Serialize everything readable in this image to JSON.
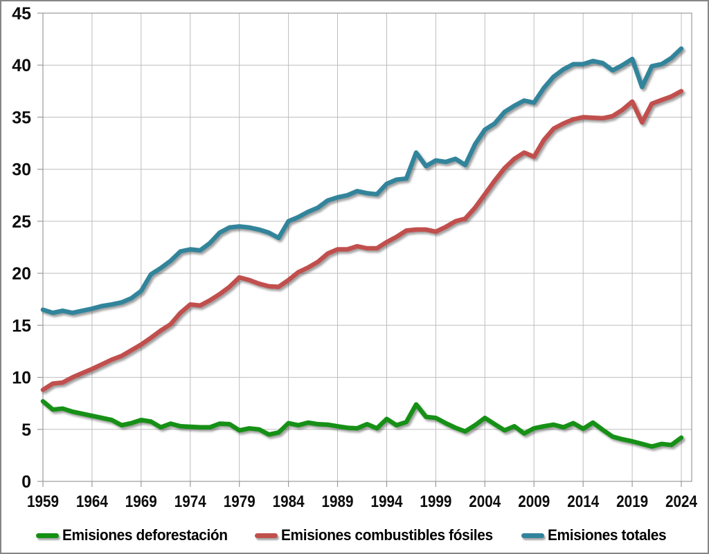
{
  "chart_data": {
    "type": "line",
    "title": "",
    "xlabel": "",
    "ylabel": "",
    "ylim": [
      0,
      45
    ],
    "grid": true,
    "legend_position": "bottom",
    "y_ticks": [
      0,
      5,
      10,
      15,
      20,
      25,
      30,
      35,
      40,
      45
    ],
    "y_tick_labels": [
      "0",
      "5",
      "10",
      "15",
      "20",
      "25",
      "30",
      "35",
      "40",
      "45"
    ],
    "x_ticks": [
      1959,
      1964,
      1969,
      1974,
      1979,
      1984,
      1989,
      1994,
      1999,
      2004,
      2009,
      2014,
      2019,
      2024
    ],
    "x_tick_labels": [
      "1959",
      "1964",
      "1969",
      "1974",
      "1979",
      "1984",
      "1989",
      "1994",
      "1999",
      "2004",
      "2009",
      "2014",
      "2019",
      "2024"
    ],
    "years": [
      1959,
      1960,
      1961,
      1962,
      1963,
      1964,
      1965,
      1966,
      1967,
      1968,
      1969,
      1970,
      1971,
      1972,
      1973,
      1974,
      1975,
      1976,
      1977,
      1978,
      1979,
      1980,
      1981,
      1982,
      1983,
      1984,
      1985,
      1986,
      1987,
      1988,
      1989,
      1990,
      1991,
      1992,
      1993,
      1994,
      1995,
      1996,
      1997,
      1998,
      1999,
      2000,
      2001,
      2002,
      2003,
      2004,
      2005,
      2006,
      2007,
      2008,
      2009,
      2010,
      2011,
      2012,
      2013,
      2014,
      2015,
      2016,
      2017,
      2018,
      2019,
      2020,
      2021,
      2022,
      2023,
      2024
    ],
    "series": [
      {
        "name": "Emisiones deforestación",
        "color": "#129012",
        "values": [
          7.7,
          6.9,
          7.0,
          6.7,
          6.5,
          6.3,
          6.1,
          5.9,
          5.4,
          5.6,
          5.9,
          5.75,
          5.2,
          5.55,
          5.3,
          5.25,
          5.2,
          5.2,
          5.55,
          5.5,
          4.9,
          5.1,
          5.0,
          4.5,
          4.7,
          5.6,
          5.4,
          5.65,
          5.5,
          5.45,
          5.3,
          5.15,
          5.1,
          5.5,
          5.1,
          6.0,
          5.4,
          5.7,
          7.4,
          6.2,
          6.1,
          5.6,
          5.15,
          4.8,
          5.4,
          6.1,
          5.5,
          4.9,
          5.3,
          4.6,
          5.1,
          5.3,
          5.45,
          5.2,
          5.6,
          5.05,
          5.65,
          4.95,
          4.3,
          4.05,
          3.85,
          3.6,
          3.35,
          3.6,
          3.5,
          4.2
        ]
      },
      {
        "name": "Emisiones combustibles fósiles",
        "color": "#C0504D",
        "values": [
          8.8,
          9.4,
          9.5,
          10.0,
          10.4,
          10.8,
          11.25,
          11.7,
          12.05,
          12.6,
          13.15,
          13.8,
          14.5,
          15.1,
          16.2,
          17.0,
          16.9,
          17.4,
          18.0,
          18.7,
          19.6,
          19.35,
          19.0,
          18.75,
          18.7,
          19.35,
          20.1,
          20.55,
          21.1,
          21.9,
          22.3,
          22.3,
          22.6,
          22.4,
          22.4,
          23.0,
          23.5,
          24.1,
          24.2,
          24.2,
          24.0,
          24.45,
          25.0,
          25.25,
          26.3,
          27.6,
          28.9,
          30.1,
          31.0,
          31.6,
          31.2,
          32.8,
          33.9,
          34.4,
          34.8,
          35.0,
          34.95,
          34.9,
          35.1,
          35.7,
          36.5,
          34.5,
          36.3,
          36.65,
          37.0,
          37.5
        ]
      },
      {
        "name": "Emisiones totales",
        "color": "#31849B",
        "values": [
          16.5,
          16.2,
          16.4,
          16.2,
          16.4,
          16.6,
          16.85,
          17.0,
          17.2,
          17.6,
          18.3,
          19.9,
          20.5,
          21.2,
          22.1,
          22.3,
          22.2,
          22.9,
          23.9,
          24.4,
          24.5,
          24.4,
          24.2,
          23.9,
          23.4,
          25.0,
          25.4,
          25.9,
          26.3,
          27.0,
          27.3,
          27.5,
          27.9,
          27.7,
          27.6,
          28.6,
          29.0,
          29.1,
          31.6,
          30.3,
          30.85,
          30.7,
          31.0,
          30.4,
          32.4,
          33.8,
          34.4,
          35.5,
          36.1,
          36.6,
          36.4,
          37.8,
          38.9,
          39.6,
          40.1,
          40.1,
          40.4,
          40.2,
          39.5,
          40.0,
          40.6,
          37.9,
          39.9,
          40.1,
          40.7,
          41.6
        ]
      }
    ]
  },
  "legend": {
    "items": [
      {
        "label": "Emisiones deforestación"
      },
      {
        "label": "Emisiones combustibles fósiles"
      },
      {
        "label": "Emisiones totales"
      }
    ]
  }
}
